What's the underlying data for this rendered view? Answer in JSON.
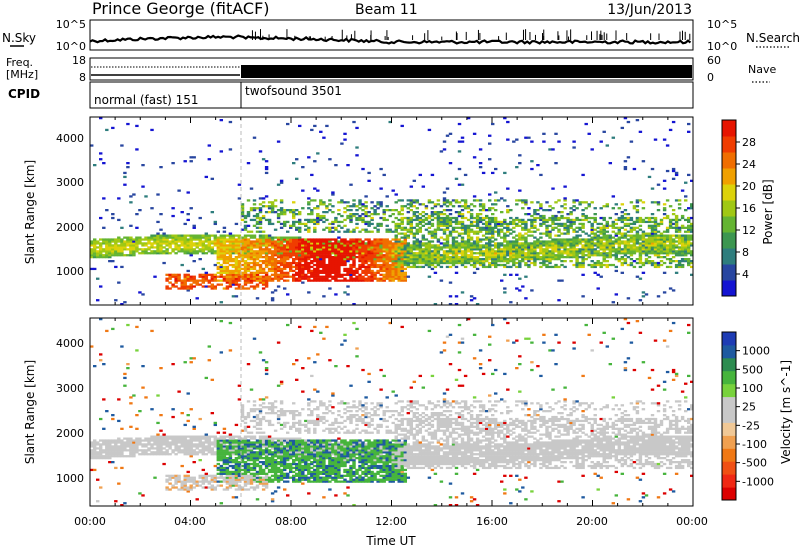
{
  "header": {
    "station": "Prince George (fitACF)",
    "beam": "Beam 11",
    "date": "13/Jun/2013"
  },
  "noise_panel": {
    "left_label": "N.Sky",
    "right_label": "N.Search",
    "left_ticks": [
      "10^5",
      "10^0"
    ],
    "right_ticks": [
      "10^5",
      "10^0"
    ]
  },
  "freq_panel": {
    "label_line1": "Freq.",
    "label_line2": "[MHz]",
    "left_ticks": [
      "18",
      "8"
    ],
    "right_label": "Nave",
    "right_ticks": [
      "60",
      "0"
    ]
  },
  "cpid": {
    "label": "CPID",
    "programs": [
      {
        "name": "normal (fast) 151",
        "start_hour": 0,
        "end_hour": 6
      },
      {
        "name": "twofsound 3501",
        "start_hour": 6,
        "end_hour": 24
      }
    ]
  },
  "chart_data": [
    {
      "type": "heatmap",
      "name": "power",
      "ylabel": "Slant Range [km]",
      "ylim": [
        180,
        4500
      ],
      "yticks": [
        "1000",
        "2000",
        "3000",
        "4000"
      ],
      "xlim_hours": [
        0,
        24
      ],
      "colorbar": {
        "label": "Power [dB]",
        "ticks": [
          "4",
          "8",
          "12",
          "16",
          "20",
          "24",
          "28"
        ],
        "colors": [
          "#1414d2",
          "#2846a0",
          "#2e7d7d",
          "#3c9650",
          "#64b432",
          "#a0c814",
          "#dcd20a",
          "#f0a000",
          "#f06e00",
          "#f03c00",
          "#e61400"
        ]
      }
    },
    {
      "type": "heatmap",
      "name": "velocity",
      "ylabel": "Slant Range [km]",
      "ylim": [
        180,
        4500
      ],
      "yticks": [
        "1000",
        "2000",
        "3000",
        "4000"
      ],
      "xlim_hours": [
        0,
        24
      ],
      "colorbar": {
        "label": "Velocity [m s^-1]",
        "ticks": [
          "1000",
          "500",
          "100",
          "25",
          "-25",
          "-100",
          "-500",
          "-1000"
        ],
        "colors": [
          "#1e3cb4",
          "#1e5aa0",
          "#2d8c50",
          "#46b43c",
          "#78d23c",
          "#c8c8c8",
          "#c8c8c8",
          "#f0c896",
          "#f0a050",
          "#f07814",
          "#f05014",
          "#f02814",
          "#dc0000"
        ]
      }
    }
  ],
  "x_axis": {
    "label": "Time UT",
    "ticks": [
      "00:00",
      "04:00",
      "08:00",
      "12:00",
      "16:00",
      "20:00",
      "00:00"
    ]
  }
}
